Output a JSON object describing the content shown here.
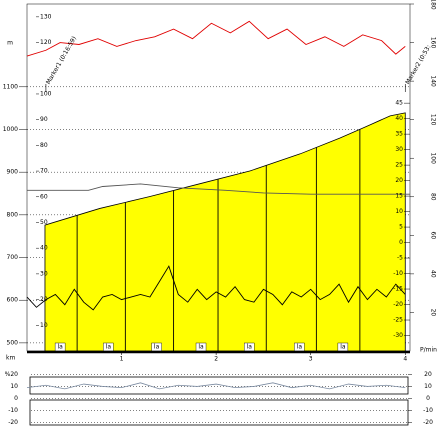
{
  "chart_data": [
    {
      "type": "area",
      "x_label": "km",
      "xlim": [
        0,
        4.05
      ],
      "xticks": [
        1,
        2,
        3,
        4
      ],
      "y_label": "m",
      "ylim": [
        481,
        1294
      ],
      "yticks": [
        500,
        600,
        700,
        800,
        900,
        1000,
        1100
      ],
      "y2lim": [
        0,
        135
      ],
      "y2ticks": [
        10,
        20,
        30,
        40,
        50,
        60,
        70,
        80,
        90,
        100,
        120,
        130
      ],
      "y3lim": [
        -35,
        77
      ],
      "y3ticks": [
        -30,
        -25,
        -20,
        -15,
        -10,
        -5,
        0,
        5,
        10,
        15,
        20,
        25,
        30,
        35,
        40,
        45
      ],
      "y4lim": [
        0,
        180
      ],
      "y4ticks": [
        20,
        40,
        60,
        80,
        100,
        120,
        140,
        160,
        180
      ],
      "y4_label": "P/min",
      "grid": true,
      "series": [
        {
          "type": "area",
          "color": "#ffff00",
          "edge_color": "#000000",
          "x": [
            0.19,
            0.77,
            1.3,
            1.83,
            2.36,
            2.89,
            3.31,
            3.63,
            3.84,
            4.0
          ],
          "values": [
            776,
            815,
            843,
            873,
            903,
            943,
            980,
            1011,
            1032,
            1039
          ]
        },
        {
          "type": "line",
          "axis": "y2",
          "color": "#555555",
          "x": [
            0,
            0.65,
            0.8,
            1.2,
            1.6,
            2.1,
            2.5,
            3.0,
            3.5,
            4.05
          ],
          "values": [
            62.5,
            62.5,
            64,
            65,
            63.5,
            62.5,
            61.5,
            61,
            61,
            61
          ]
        },
        {
          "type": "line",
          "axis": "y2",
          "color": "#000000",
          "x": [
            0,
            0.1,
            0.2,
            0.3,
            0.4,
            0.5,
            0.6,
            0.7,
            0.8,
            0.9,
            1.0,
            1.1,
            1.2,
            1.3,
            1.4,
            1.5,
            1.6,
            1.7,
            1.8,
            1.9,
            2.0,
            2.1,
            2.2,
            2.3,
            2.4,
            2.5,
            2.6,
            2.7,
            2.8,
            2.9,
            3.0,
            3.1,
            3.2,
            3.3,
            3.4,
            3.5,
            3.6,
            3.7,
            3.8,
            3.9,
            4.0
          ],
          "values": [
            21,
            17,
            20,
            22,
            18,
            24,
            19,
            16,
            21,
            22,
            20,
            21,
            22,
            21,
            27,
            33,
            22,
            19,
            24,
            20,
            23,
            21,
            25,
            20,
            19,
            24,
            22,
            18,
            23,
            21,
            24,
            20,
            22,
            26,
            19,
            25,
            20,
            24,
            21,
            26,
            22
          ]
        },
        {
          "type": "line",
          "axis": "y4",
          "color": "#e00000",
          "x": [
            0,
            0.2,
            0.35,
            0.55,
            0.75,
            0.95,
            1.15,
            1.35,
            1.55,
            1.75,
            1.95,
            2.15,
            2.35,
            2.55,
            2.75,
            2.95,
            3.15,
            3.35,
            3.55,
            3.75,
            3.9,
            4.0
          ],
          "values": [
            153,
            156,
            160,
            159,
            162,
            158,
            161,
            163,
            167,
            162,
            170,
            165,
            171,
            162,
            167,
            159,
            163,
            158,
            164,
            161,
            154,
            158
          ]
        }
      ],
      "laps": {
        "x": [
          0.53,
          1.04,
          1.55,
          2.02,
          2.53,
          3.06,
          3.52
        ],
        "labels": [
          "la",
          "la",
          "la",
          "la",
          "la",
          "la",
          "la"
        ]
      },
      "markers": [
        {
          "label": "Marker1 (0:16:59)",
          "x": 0.2
        },
        {
          "label": "Marker2 (0:53:",
          "x": 4.0
        }
      ]
    },
    {
      "type": "line",
      "xlim": [
        0,
        4.05
      ],
      "ylim": [
        -22,
        22
      ],
      "yticks": [
        {
          "value": 20,
          "label": "%20"
        },
        10,
        0,
        -10,
        -20
      ],
      "y2ticks": [
        20,
        10,
        0,
        -10,
        -20
      ],
      "series": [
        {
          "color": "#7a8aa0",
          "x": [
            0,
            0.2,
            0.4,
            0.6,
            0.8,
            1.0,
            1.2,
            1.4,
            1.6,
            1.8,
            2.0,
            2.2,
            2.4,
            2.6,
            2.8,
            3.0,
            3.2,
            3.4,
            3.6,
            3.8,
            4.0
          ],
          "values": [
            9,
            11,
            8,
            12,
            10,
            9,
            13,
            8,
            11,
            10,
            12,
            9,
            10,
            13,
            9,
            11,
            8,
            12,
            10,
            11,
            9
          ]
        }
      ]
    }
  ]
}
